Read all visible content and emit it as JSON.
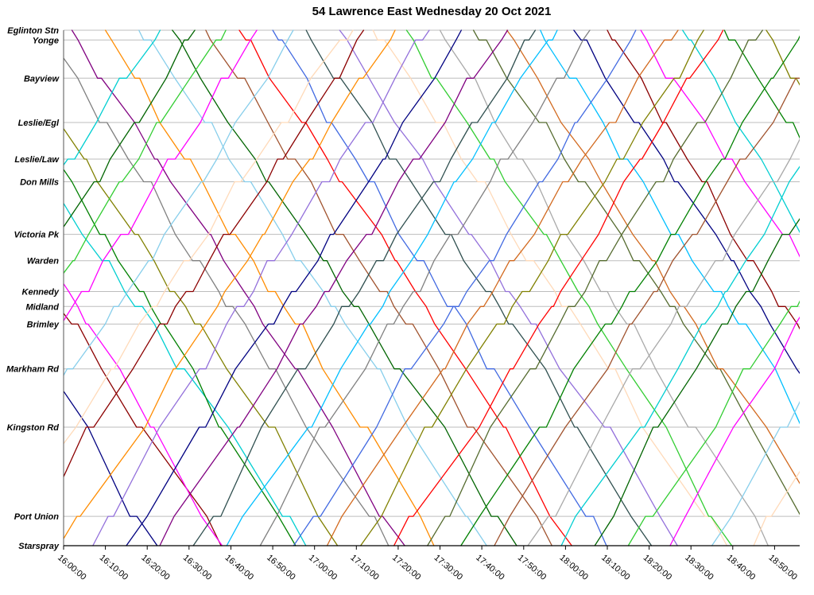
{
  "chart_data": {
    "type": "line",
    "title": "54 Lawrence East Wednesday 20 Oct 2021",
    "grid": "horizontal",
    "legend": "none",
    "x_axis": {
      "tick_minutes": [
        0,
        10,
        20,
        30,
        40,
        50,
        60,
        70,
        80,
        90,
        100,
        110,
        120,
        130,
        140,
        150,
        160,
        170
      ],
      "tick_labels": [
        "16:00:00",
        "16:10:00",
        "16:20:00",
        "16:30:00",
        "16:40:00",
        "16:50:00",
        "17:00:00",
        "17:10:00",
        "17:20:00",
        "17:30:00",
        "17:40:00",
        "17:50:00",
        "18:00:00",
        "18:10:00",
        "18:20:00",
        "18:30:00",
        "18:40:00",
        "18:50:00"
      ],
      "t_min": 0,
      "t_max": 176
    },
    "y_axis": {
      "stops": [
        {
          "name": "Eglinton Stn",
          "rel": 0.0
        },
        {
          "name": "Yonge",
          "rel": 0.019
        },
        {
          "name": "Bayview",
          "rel": 0.093
        },
        {
          "name": "Leslie/Egl",
          "rel": 0.179
        },
        {
          "name": "Leslie/Law",
          "rel": 0.25
        },
        {
          "name": "Don Mills",
          "rel": 0.294
        },
        {
          "name": "Victoria Pk",
          "rel": 0.396
        },
        {
          "name": "Warden",
          "rel": 0.447
        },
        {
          "name": "Kennedy",
          "rel": 0.507
        },
        {
          "name": "Midland",
          "rel": 0.536
        },
        {
          "name": "Brimley",
          "rel": 0.57
        },
        {
          "name": "Markham Rd",
          "rel": 0.657
        },
        {
          "name": "Kingston Rd",
          "rel": 0.77
        },
        {
          "name": "Port Union",
          "rel": 0.943
        },
        {
          "name": "Starspray",
          "rel": 1.0
        }
      ]
    },
    "trips": [
      {
        "dir": "EB",
        "t0": -58,
        "dur": 74,
        "color": "#000080"
      },
      {
        "dir": "EB",
        "t0": -48,
        "dur": 76,
        "color": "#8B0000"
      },
      {
        "dir": "EB",
        "t0": -38,
        "dur": 72,
        "color": "#FF00FF"
      },
      {
        "dir": "EB",
        "t0": -30,
        "dur": 78,
        "color": "#00CED1"
      },
      {
        "dir": "EB",
        "t0": -22,
        "dur": 70,
        "color": "#008000"
      },
      {
        "dir": "EB",
        "t0": -14,
        "dur": 75,
        "color": "#808000"
      },
      {
        "dir": "EB",
        "t0": -6,
        "dur": 72,
        "color": "#808080"
      },
      {
        "dir": "EB",
        "t0": 2,
        "dur": 76,
        "color": "#800080"
      },
      {
        "dir": "EB",
        "t0": 10,
        "dur": 70,
        "color": "#FF8C00"
      },
      {
        "dir": "EB",
        "t0": 18,
        "dur": 74,
        "color": "#87CEEB"
      },
      {
        "dir": "EB",
        "t0": 26,
        "dur": 78,
        "color": "#006400"
      },
      {
        "dir": "EB",
        "t0": 34,
        "dur": 72,
        "color": "#A0522D"
      },
      {
        "dir": "EB",
        "t0": 42,
        "dur": 76,
        "color": "#FF0000"
      },
      {
        "dir": "EB",
        "t0": 50,
        "dur": 70,
        "color": "#4169E1"
      },
      {
        "dir": "EB",
        "t0": 58,
        "dur": 74,
        "color": "#2F4F4F"
      },
      {
        "dir": "EB",
        "t0": 66,
        "dur": 78,
        "color": "#9370DB"
      },
      {
        "dir": "EB",
        "t0": 74,
        "dur": 72,
        "color": "#FFDAB9"
      },
      {
        "dir": "EB",
        "t0": 82,
        "dur": 75,
        "color": "#32CD32"
      },
      {
        "dir": "EB",
        "t0": 90,
        "dur": 70,
        "color": "#A9A9A9"
      },
      {
        "dir": "EB",
        "t0": 98,
        "dur": 74,
        "color": "#556B2F"
      },
      {
        "dir": "EB",
        "t0": 106,
        "dur": 77,
        "color": "#D2691E"
      },
      {
        "dir": "EB",
        "t0": 114,
        "dur": 71,
        "color": "#00BFFF"
      },
      {
        "dir": "EB",
        "t0": 122,
        "dur": 75,
        "color": "#000080"
      },
      {
        "dir": "EB",
        "t0": 130,
        "dur": 70,
        "color": "#8B0000"
      },
      {
        "dir": "EB",
        "t0": 138,
        "dur": 74,
        "color": "#FF00FF"
      },
      {
        "dir": "EB",
        "t0": 148,
        "dur": 72,
        "color": "#00CED1"
      },
      {
        "dir": "EB",
        "t0": 158,
        "dur": 70,
        "color": "#008000"
      },
      {
        "dir": "EB",
        "t0": 168,
        "dur": 68,
        "color": "#808000"
      },
      {
        "dir": "WB",
        "t0": -60,
        "dur": 75,
        "color": "#00CED1"
      },
      {
        "dir": "WB",
        "t0": -50,
        "dur": 72,
        "color": "#006400"
      },
      {
        "dir": "WB",
        "t0": -42,
        "dur": 76,
        "color": "#32CD32"
      },
      {
        "dir": "WB",
        "t0": -33,
        "dur": 70,
        "color": "#FF00FF"
      },
      {
        "dir": "WB",
        "t0": -25,
        "dur": 74,
        "color": "#87CEEB"
      },
      {
        "dir": "WB",
        "t0": -17,
        "dur": 78,
        "color": "#FFDAB9"
      },
      {
        "dir": "WB",
        "t0": -9,
        "dur": 72,
        "color": "#8B0000"
      },
      {
        "dir": "WB",
        "t0": -1,
        "dur": 76,
        "color": "#FF8C00"
      },
      {
        "dir": "WB",
        "t0": 7,
        "dur": 70,
        "color": "#9370DB"
      },
      {
        "dir": "WB",
        "t0": 15,
        "dur": 74,
        "color": "#000080"
      },
      {
        "dir": "WB",
        "t0": 23,
        "dur": 77,
        "color": "#800080"
      },
      {
        "dir": "WB",
        "t0": 31,
        "dur": 71,
        "color": "#2F4F4F"
      },
      {
        "dir": "WB",
        "t0": 39,
        "dur": 75,
        "color": "#00BFFF"
      },
      {
        "dir": "WB",
        "t0": 47,
        "dur": 70,
        "color": "#808080"
      },
      {
        "dir": "WB",
        "t0": 55,
        "dur": 74,
        "color": "#4169E1"
      },
      {
        "dir": "WB",
        "t0": 63,
        "dur": 78,
        "color": "#D2691E"
      },
      {
        "dir": "WB",
        "t0": 71,
        "dur": 72,
        "color": "#808000"
      },
      {
        "dir": "WB",
        "t0": 79,
        "dur": 75,
        "color": "#FF0000"
      },
      {
        "dir": "WB",
        "t0": 87,
        "dur": 70,
        "color": "#556B2F"
      },
      {
        "dir": "WB",
        "t0": 95,
        "dur": 74,
        "color": "#008000"
      },
      {
        "dir": "WB",
        "t0": 103,
        "dur": 77,
        "color": "#A0522D"
      },
      {
        "dir": "WB",
        "t0": 111,
        "dur": 71,
        "color": "#A9A9A9"
      },
      {
        "dir": "WB",
        "t0": 119,
        "dur": 75,
        "color": "#00CED1"
      },
      {
        "dir": "WB",
        "t0": 127,
        "dur": 70,
        "color": "#006400"
      },
      {
        "dir": "WB",
        "t0": 135,
        "dur": 74,
        "color": "#32CD32"
      },
      {
        "dir": "WB",
        "t0": 145,
        "dur": 72,
        "color": "#FF00FF"
      },
      {
        "dir": "WB",
        "t0": 155,
        "dur": 70,
        "color": "#87CEEB"
      },
      {
        "dir": "WB",
        "t0": 165,
        "dur": 68,
        "color": "#FFDAB9"
      }
    ]
  }
}
